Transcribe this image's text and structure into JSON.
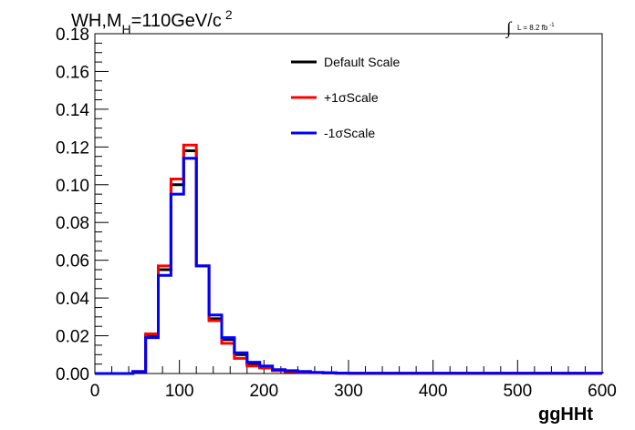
{
  "chart_data": {
    "type": "line",
    "title": {
      "main": "WH,M",
      "subscript": "H",
      "rest": "=110GeV/c",
      "superscript": "2"
    },
    "luminosity": {
      "symbol": "∫",
      "text": "L = 8.2 fb",
      "superscript": "-1"
    },
    "xlabel": "ggHHt",
    "ylabel": "",
    "xlim": [
      0,
      600
    ],
    "ylim": [
      0,
      0.18
    ],
    "x_ticks": [
      0,
      100,
      200,
      300,
      400,
      500,
      600
    ],
    "x_tick_labels": [
      "0",
      "100",
      "200",
      "300",
      "400",
      "500",
      "600"
    ],
    "y_ticks": [
      0,
      0.02,
      0.04,
      0.06,
      0.08,
      0.1,
      0.12,
      0.14,
      0.16,
      0.18
    ],
    "y_tick_labels": [
      "0.00",
      "0.02",
      "0.04",
      "0.06",
      "0.08",
      "0.10",
      "0.12",
      "0.14",
      "0.16",
      "0.18"
    ],
    "bin_edges": [
      0,
      15,
      30,
      45,
      60,
      75,
      90,
      105,
      120,
      135,
      150,
      165,
      180,
      195,
      210,
      225,
      240,
      255,
      270,
      285,
      300,
      600
    ],
    "legend_position": "top-center",
    "series": [
      {
        "name": "Default Scale",
        "color": "#000000",
        "values": [
          0,
          0,
          0,
          0.001,
          0.02,
          0.055,
          0.1,
          0.118,
          0.057,
          0.029,
          0.018,
          0.01,
          0.005,
          0.003,
          0.002,
          0.001,
          0.001,
          0.0005,
          0.0003,
          0.0002,
          0.0001
        ]
      },
      {
        "name": "+1σScale",
        "color": "#ff0000",
        "values": [
          0,
          0,
          0,
          0.001,
          0.021,
          0.057,
          0.103,
          0.121,
          0.057,
          0.028,
          0.016,
          0.008,
          0.004,
          0.003,
          0.0015,
          0.001,
          0.0008,
          0.0004,
          0.0003,
          0.0002,
          0.0001
        ]
      },
      {
        "name": "-1σScale",
        "color": "#0000ff",
        "values": [
          0,
          0,
          0,
          0.001,
          0.019,
          0.052,
          0.095,
          0.114,
          0.057,
          0.031,
          0.019,
          0.011,
          0.006,
          0.004,
          0.002,
          0.0015,
          0.001,
          0.0006,
          0.0004,
          0.0002,
          0.0001
        ]
      }
    ]
  }
}
